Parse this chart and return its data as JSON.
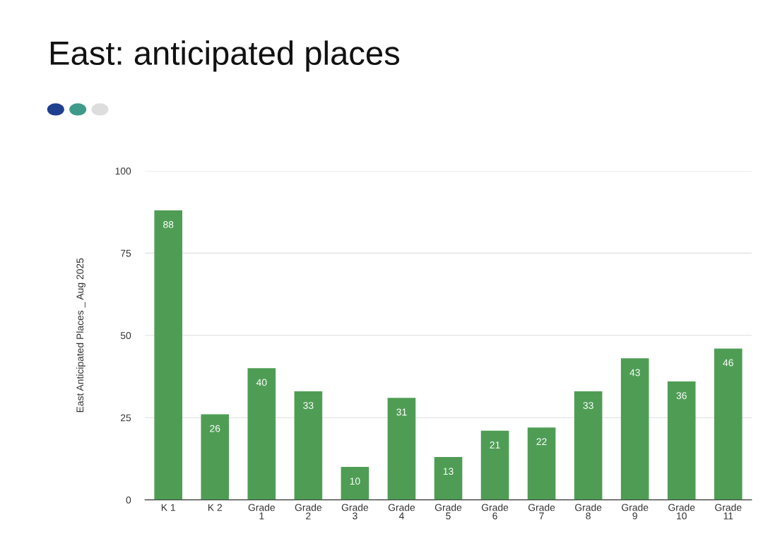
{
  "chart_data": {
    "type": "bar",
    "title": "East: anticipated places",
    "ylabel": "East Anticipated Places _ Aug 2025",
    "categories": [
      "K 1",
      "K 2",
      "Grade\n1",
      "Grade\n2",
      "Grade\n3",
      "Grade\n4",
      "Grade\n5",
      "Grade\n6",
      "Grade\n7",
      "Grade\n8",
      "Grade\n9",
      "Grade\n10",
      "Grade\n11"
    ],
    "values": [
      88,
      26,
      40,
      33,
      10,
      31,
      13,
      21,
      22,
      33,
      43,
      36,
      46
    ],
    "color": "#4f9d55",
    "ylim": [
      0,
      100
    ],
    "yticks": [
      0,
      25,
      50,
      75,
      100
    ],
    "grid": "y",
    "data_labels": true
  }
}
